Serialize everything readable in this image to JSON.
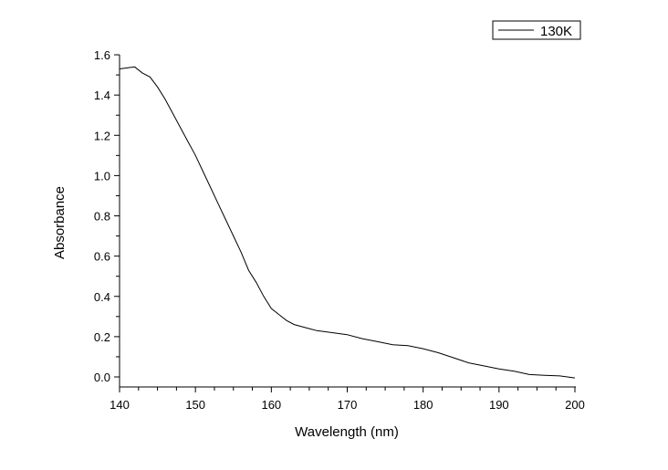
{
  "chart_data": {
    "type": "line",
    "title": "",
    "xlabel": "Wavelength (nm)",
    "ylabel": "Absorbance",
    "xlim": [
      140,
      200
    ],
    "ylim": [
      -0.05,
      1.6
    ],
    "xticks": [
      "140",
      "150",
      "160",
      "170",
      "180",
      "190",
      "200"
    ],
    "yticks": [
      "0.0",
      "0.2",
      "0.4",
      "0.6",
      "0.8",
      "1.0",
      "1.2",
      "1.4",
      "1.6"
    ],
    "grid": false,
    "legend_placement": "top-right",
    "series": [
      {
        "name": "130K",
        "color": "#000000",
        "x": [
          140,
          141,
          142,
          143,
          144,
          145,
          146,
          147,
          148,
          149,
          150,
          151,
          152,
          153,
          154,
          155,
          156,
          157,
          158,
          159,
          160,
          161,
          162,
          163,
          164,
          165,
          166,
          168,
          170,
          172,
          174,
          176,
          178,
          180,
          182,
          184,
          186,
          188,
          190,
          192,
          194,
          196,
          198,
          200
        ],
        "y": [
          1.53,
          1.535,
          1.54,
          1.51,
          1.49,
          1.44,
          1.38,
          1.31,
          1.24,
          1.17,
          1.1,
          1.02,
          0.94,
          0.86,
          0.78,
          0.7,
          0.62,
          0.53,
          0.47,
          0.4,
          0.34,
          0.31,
          0.28,
          0.26,
          0.25,
          0.24,
          0.23,
          0.22,
          0.21,
          0.19,
          0.175,
          0.16,
          0.155,
          0.14,
          0.12,
          0.095,
          0.07,
          0.055,
          0.04,
          0.028,
          0.012,
          0.008,
          0.005,
          -0.005
        ]
      }
    ]
  }
}
